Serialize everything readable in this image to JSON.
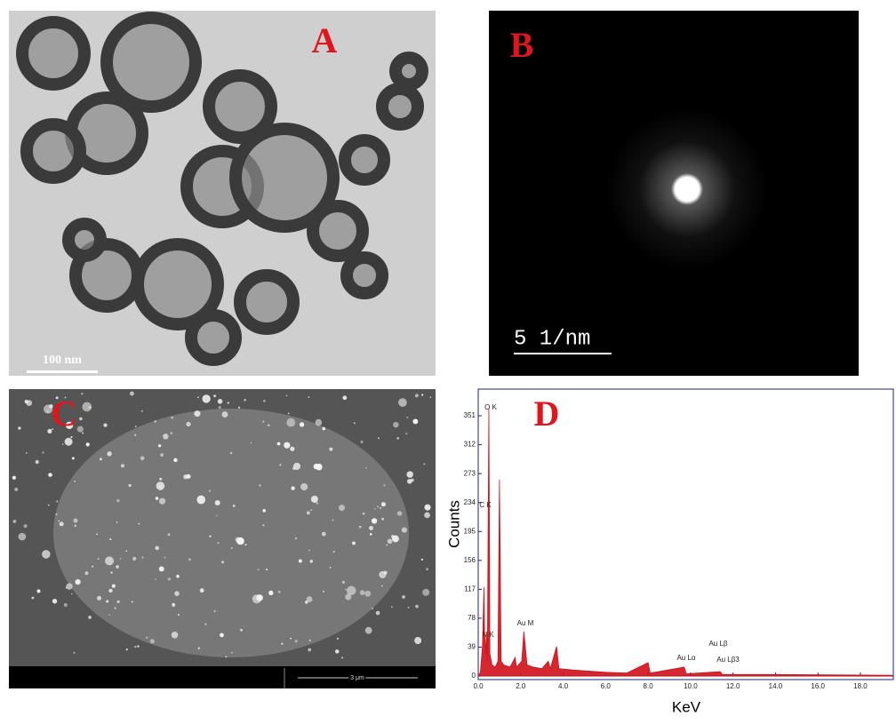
{
  "panels": {
    "a": {
      "label": "A",
      "scale_bar": "100 nm"
    },
    "b": {
      "label": "B",
      "scale_bar": "5 1/nm"
    },
    "c": {
      "label": "C",
      "scale_bar": "3 μm"
    }
  },
  "chart_data": {
    "type": "area",
    "panel_label": "D",
    "x_label": "KeV",
    "y_label": "Counts",
    "x": [
      0.0,
      0.1,
      0.2,
      0.27,
      0.3,
      0.35,
      0.39,
      0.43,
      0.5,
      0.55,
      0.65,
      0.8,
      0.93,
      1.0,
      1.08,
      1.2,
      1.5,
      1.74,
      1.8,
      2.05,
      2.15,
      2.3,
      2.6,
      3.0,
      3.3,
      3.4,
      3.69,
      3.8,
      4.5,
      6.0,
      7.0,
      8.0,
      8.1,
      9.7,
      9.8,
      11.4,
      11.5,
      14.0,
      19.5
    ],
    "series": [
      {
        "color": "#d0101a",
        "values": [
          0,
          5,
          40,
          120,
          60,
          30,
          60,
          20,
          360,
          30,
          15,
          12,
          20,
          265,
          20,
          15,
          12,
          25,
          12,
          20,
          60,
          15,
          12,
          10,
          20,
          10,
          40,
          10,
          8,
          5,
          4,
          18,
          4,
          12,
          3,
          6,
          2,
          2,
          1
        ]
      }
    ],
    "annotations": [
      "O K",
      "C K",
      "N K",
      "Au M",
      "Au Lα",
      "Au Lβ",
      "Au Lβ3"
    ],
    "xlim": [
      0,
      19.55
    ],
    "ylim": [
      0,
      387
    ],
    "xticks": [
      {
        "value": 0,
        "label": "0.0"
      },
      {
        "value": 2,
        "label": "2.0"
      },
      {
        "value": 4,
        "label": "4.0"
      },
      {
        "value": 6,
        "label": "6.0"
      },
      {
        "value": 8,
        "label": "8.0"
      },
      {
        "value": 10,
        "label": "10.0"
      },
      {
        "value": 12,
        "label": "12.0"
      },
      {
        "value": 14,
        "label": "14.0"
      },
      {
        "value": 16,
        "label": "16.0"
      },
      {
        "value": 18,
        "label": "18.0"
      }
    ],
    "yticks": [
      0,
      39,
      78,
      117,
      156,
      195,
      234,
      273,
      312,
      351
    ]
  }
}
